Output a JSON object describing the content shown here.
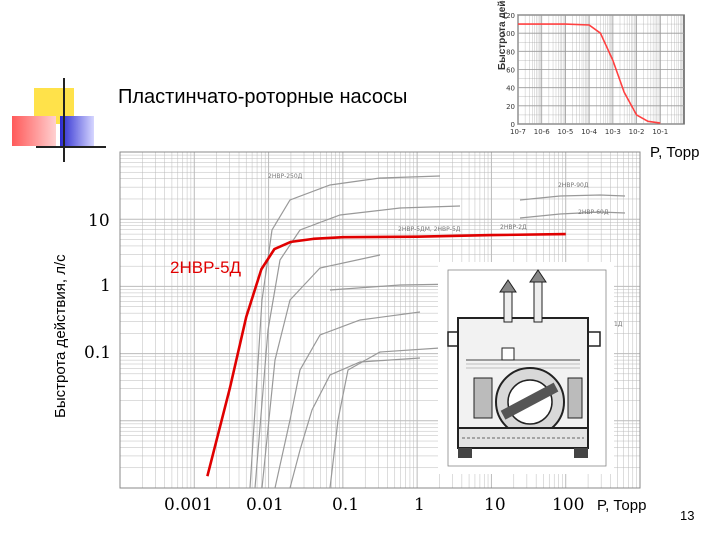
{
  "slide": {
    "title": "Пластинчато-роторные насосы",
    "page_number": "13"
  },
  "colors": {
    "highlight": "#e00000",
    "inset_curve": "#ff4040",
    "grid": "#bbbbbb",
    "background_curves": "#999999",
    "deco_yellow": "#ffe24a",
    "deco_red": "#ff6a6a",
    "deco_blue": "#3b3bd6"
  },
  "main_chart": {
    "ylabel": "Быстрота действия, л/с",
    "xunit": "P, Торр",
    "y_overlay_ticks": [
      "10",
      "1",
      "0.1"
    ],
    "x_overlay_ticks": [
      "0.001",
      "0.01",
      "0.1",
      "1",
      "10",
      "100"
    ],
    "highlight_label": "2НВР-5Д",
    "background_labels": [
      "2НВР-250Д",
      "2НВР-90Д",
      "2НВР-60Д",
      "2НВР-5ДМ, 2НВР-5Д",
      "2НВР-2Д",
      "2НВР-0,1Д"
    ]
  },
  "chart_data": [
    {
      "type": "line",
      "title": "",
      "xlabel": "P, Торр",
      "ylabel": "Быстрота действия, л/с",
      "x_scale": "log",
      "y_scale": "log",
      "xlim": [
        0.0001,
        1000
      ],
      "ylim": [
        0.001,
        100
      ],
      "grid": true,
      "x_tick_labels": [
        "0.001",
        "0.01",
        "0.1",
        "1",
        "10",
        "100"
      ],
      "y_tick_labels": [
        "10",
        "1",
        "0.1"
      ],
      "series": [
        {
          "name": "2НВР-5Д",
          "x": [
            0.0015,
            0.003,
            0.005,
            0.008,
            0.012,
            0.02,
            0.04,
            0.1,
            1,
            10,
            100
          ],
          "y": [
            0.0015,
            0.03,
            0.35,
            1.8,
            3.6,
            4.6,
            5.1,
            5.4,
            5.5,
            5.8,
            6.0
          ]
        }
      ]
    },
    {
      "type": "line",
      "title": "",
      "xlabel": "P, Торр",
      "ylabel": "Быстрота действия, л/с",
      "x_scale": "log",
      "xlim": [
        1e-07,
        1
      ],
      "ylim": [
        0,
        120
      ],
      "grid": true,
      "x_tick_labels": [
        "10-7",
        "10-6",
        "10-5",
        "10-4",
        "10-3",
        "10-2",
        "10-1"
      ],
      "y_tick_labels": [
        "0",
        "20",
        "40",
        "60",
        "80",
        "100",
        "120"
      ],
      "series": [
        {
          "x": [
            1e-07,
            1e-06,
            1e-05,
            0.0001,
            0.0003,
            0.001,
            0.003,
            0.01,
            0.03,
            0.1
          ],
          "y": [
            110,
            110,
            110,
            109,
            100,
            70,
            35,
            10,
            3,
            1
          ]
        }
      ]
    }
  ]
}
